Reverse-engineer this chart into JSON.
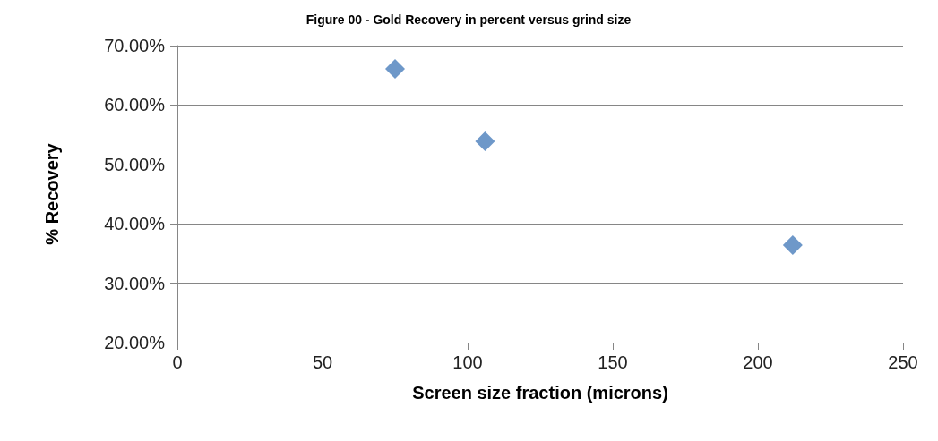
{
  "chart_data": {
    "type": "scatter",
    "title": "Figure 00 - Gold Recovery in percent versus grind size",
    "xlabel": "Screen size fraction (microns)",
    "ylabel": "% Recovery",
    "x": [
      75,
      106,
      212
    ],
    "series": [
      {
        "color": "#4a7ebb",
        "values": [
          66.1,
          53.9,
          36.4
        ]
      }
    ],
    "xlim": [
      0,
      250
    ],
    "xticks": [
      0,
      50,
      100,
      150,
      200,
      250
    ],
    "ylim": [
      20,
      70
    ],
    "yticks": [
      {
        "value": 20,
        "label": "20.00%"
      },
      {
        "value": 30,
        "label": "30.00%"
      },
      {
        "value": 40,
        "label": "40.00%"
      },
      {
        "value": 50,
        "label": "50.00%"
      },
      {
        "value": 60,
        "label": "60.00%"
      },
      {
        "value": 70,
        "label": "70.00%"
      }
    ],
    "grid": "y",
    "marker": "diamond"
  }
}
